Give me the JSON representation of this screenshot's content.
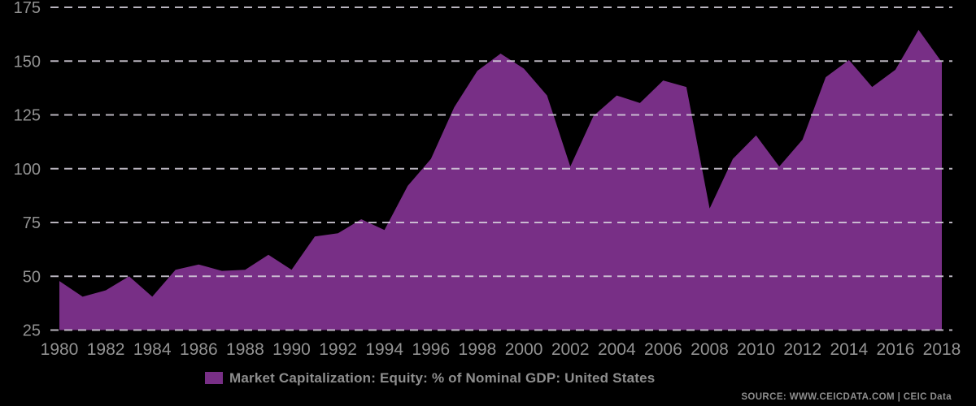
{
  "chart_data": {
    "type": "area",
    "title": "",
    "series_name": "Market Capitalization: Equity: % of Nominal GDP: United States",
    "x": [
      1980,
      1981,
      1982,
      1983,
      1984,
      1985,
      1986,
      1987,
      1988,
      1989,
      1990,
      1991,
      1992,
      1993,
      1994,
      1995,
      1996,
      1997,
      1998,
      1999,
      2000,
      2001,
      2002,
      2003,
      2004,
      2005,
      2006,
      2007,
      2008,
      2009,
      2010,
      2011,
      2012,
      2013,
      2014,
      2015,
      2016,
      2017,
      2018
    ],
    "values": [
      47.8,
      40.5,
      43.5,
      50,
      40.5,
      53,
      55.5,
      52.5,
      53,
      60,
      53,
      68.5,
      70,
      76.5,
      71.5,
      92,
      104.5,
      128.5,
      145.5,
      153.5,
      146.5,
      134,
      101,
      124.5,
      134,
      130.5,
      141,
      138,
      81.5,
      104.5,
      115.5,
      101,
      113.5,
      142.5,
      150.5,
      138,
      146,
      164.5,
      149.5
    ],
    "ylim": [
      25,
      175
    ],
    "y_ticks": [
      25,
      50,
      75,
      100,
      125,
      150,
      175
    ],
    "x_ticks": [
      1980,
      1982,
      1984,
      1986,
      1988,
      1990,
      1992,
      1994,
      1996,
      1998,
      2000,
      2002,
      2004,
      2006,
      2008,
      2010,
      2012,
      2014,
      2016,
      2018
    ],
    "xlabel": "",
    "ylabel": "",
    "grid": "horizontal-dashed",
    "legend_position": "bottom",
    "colors": {
      "area": "#782F86",
      "background": "#000000",
      "gridline": "#D8D2DE",
      "tick_label": "#929292"
    }
  },
  "legend": {
    "label": "Market Capitalization: Equity: % of Nominal GDP: United States",
    "swatch_color": "#782F86"
  },
  "source": {
    "text": "SOURCE: WWW.CEICDATA.COM | CEIC Data"
  }
}
